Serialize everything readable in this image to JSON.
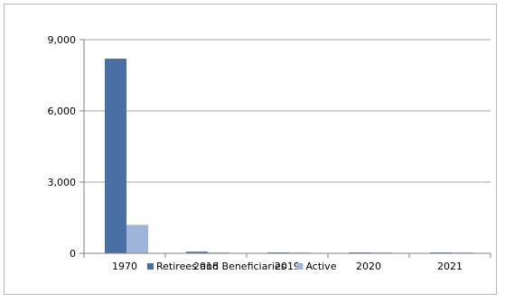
{
  "chart_data": {
    "type": "bar",
    "categories": [
      "1970",
      "2018",
      "2019",
      "2020",
      "2021"
    ],
    "series": [
      {
        "name": "Retirees and Beneficiaries",
        "color": "#4a6fa5",
        "values": [
          8200,
          70,
          30,
          20,
          20
        ]
      },
      {
        "name": "Active",
        "color": "#9fb4d9",
        "values": [
          1200,
          10,
          5,
          5,
          5
        ]
      }
    ],
    "ylim": [
      0,
      9000
    ],
    "yticks": [
      0,
      3000,
      6000,
      9000
    ],
    "ytick_labels": [
      "0",
      "3,000",
      "6,000",
      "9,000"
    ],
    "grid": true,
    "legend": "bottom",
    "title": "",
    "xlabel": "",
    "ylabel": ""
  }
}
